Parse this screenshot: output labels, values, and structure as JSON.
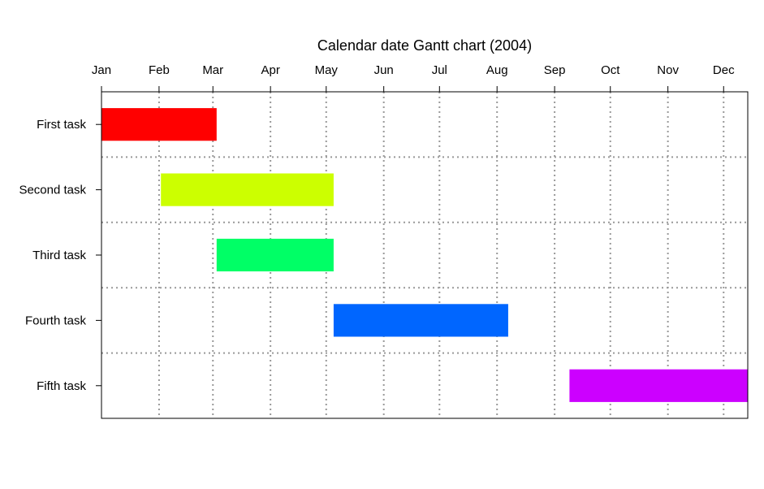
{
  "chart_data": {
    "type": "gantt",
    "title": "Calendar date Gantt chart (2004)",
    "xlabel": "",
    "ylabel": "",
    "year": 2004,
    "x_ticks": [
      {
        "date": "2004-01-01",
        "label": "Jan"
      },
      {
        "date": "2004-02-01",
        "label": "Feb"
      },
      {
        "date": "2004-03-01",
        "label": "Mar"
      },
      {
        "date": "2004-04-01",
        "label": "Apr"
      },
      {
        "date": "2004-05-01",
        "label": "May"
      },
      {
        "date": "2004-06-01",
        "label": "Jun"
      },
      {
        "date": "2004-07-01",
        "label": "Jul"
      },
      {
        "date": "2004-08-01",
        "label": "Aug"
      },
      {
        "date": "2004-09-01",
        "label": "Sep"
      },
      {
        "date": "2004-10-01",
        "label": "Oct"
      },
      {
        "date": "2004-11-01",
        "label": "Nov"
      },
      {
        "date": "2004-12-01",
        "label": "Dec"
      }
    ],
    "xlim": [
      "2004-01-01",
      "2004-12-14"
    ],
    "tasks": [
      {
        "label": "First task",
        "start": "2004-01-01",
        "end": "2004-03-03",
        "color": "#FF0000"
      },
      {
        "label": "Second task",
        "start": "2004-02-02",
        "end": "2004-05-05",
        "color": "#CCFF00"
      },
      {
        "label": "Third task",
        "start": "2004-03-03",
        "end": "2004-05-05",
        "color": "#00FF66"
      },
      {
        "label": "Fourth task",
        "start": "2004-05-05",
        "end": "2004-08-07",
        "color": "#0066FF"
      },
      {
        "label": "Fifth task",
        "start": "2004-09-09",
        "end": "2004-12-14",
        "color": "#CC00FF"
      }
    ],
    "grid": true,
    "grid_style": "dotted",
    "grid_color": "#999999",
    "x_axis_position": "top"
  }
}
